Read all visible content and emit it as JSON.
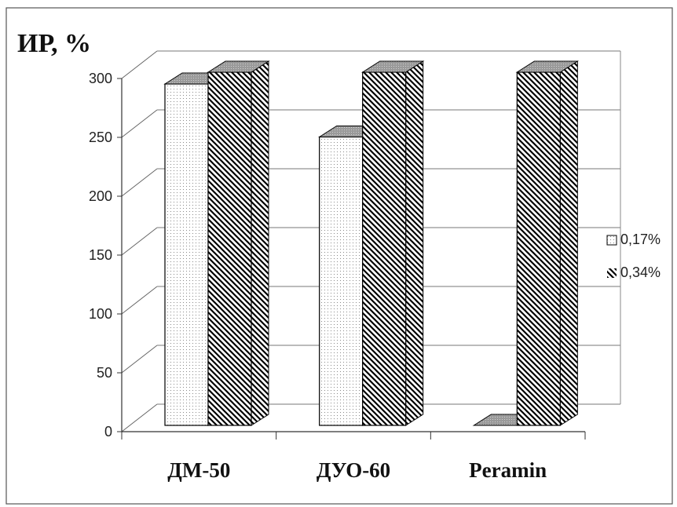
{
  "chart_data": {
    "type": "bar",
    "title": "ИР, %",
    "categories": [
      "ДМ-50",
      "ДУО-60",
      "Peramin"
    ],
    "series": [
      {
        "name": "0,17%",
        "values": [
          290,
          245,
          0
        ],
        "pattern": "dots"
      },
      {
        "name": "0,34%",
        "values": [
          300,
          300,
          300
        ],
        "pattern": "diagonal-hatch"
      }
    ],
    "yticks": [
      "0",
      "50",
      "100",
      "150",
      "200",
      "250",
      "300"
    ],
    "ylim": [
      0,
      300
    ],
    "grid": true,
    "legend": "right",
    "view": "3d-column"
  }
}
